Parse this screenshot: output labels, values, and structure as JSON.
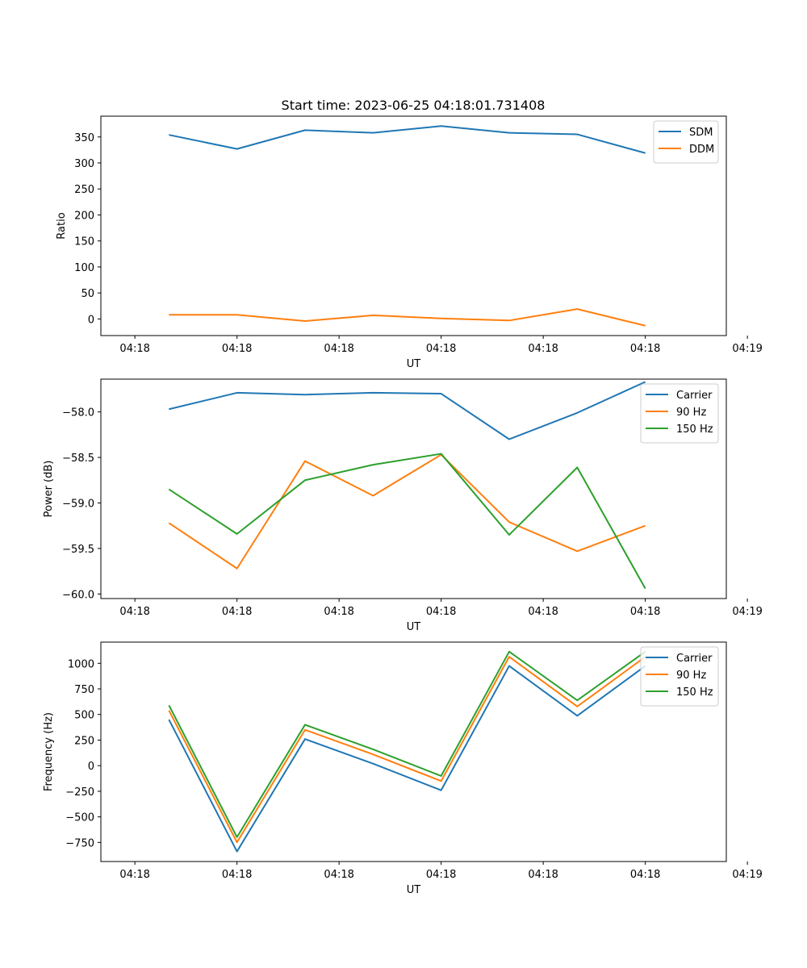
{
  "figure_title": "Start time: 2023-06-25 04:18:01.731408",
  "colors": {
    "series_1": "#1f77b4",
    "series_2": "#ff7f0e",
    "series_3": "#2ca02c",
    "axes": "#000000",
    "legend_border": "#cccccc"
  },
  "chart_data": [
    {
      "type": "line",
      "title": "Start time: 2023-06-25 04:18:01.731408",
      "xlabel": "UT",
      "ylabel": "Ratio",
      "x_ticks": [
        "04:18",
        "04:18",
        "04:18",
        "04:18",
        "04:18",
        "04:18",
        "04:19"
      ],
      "x": [
        1,
        2,
        3,
        4,
        5,
        6,
        7,
        8
      ],
      "xlim": [
        0,
        9.19
      ],
      "ylim": [
        -32,
        390
      ],
      "yticks": [
        0,
        50,
        100,
        150,
        200,
        250,
        300,
        350
      ],
      "legend_position": "top-right",
      "grid": false,
      "series": [
        {
          "name": "SDM",
          "color": "#1f77b4",
          "values": [
            354,
            327,
            363,
            358,
            371,
            358,
            355,
            319
          ]
        },
        {
          "name": "DDM",
          "color": "#ff7f0e",
          "values": [
            8,
            8,
            -4,
            7,
            1,
            -3,
            19,
            -13
          ]
        }
      ]
    },
    {
      "type": "line",
      "title": "",
      "xlabel": "UT",
      "ylabel": "Power (dB)",
      "x_ticks": [
        "04:18",
        "04:18",
        "04:18",
        "04:18",
        "04:18",
        "04:18",
        "04:19"
      ],
      "x": [
        1,
        2,
        3,
        4,
        5,
        6,
        7,
        8
      ],
      "xlim": [
        0,
        9.19
      ],
      "ylim": [
        -60.05,
        -57.64
      ],
      "yticks": [
        -60.0,
        -59.5,
        -59.0,
        -58.5,
        -58.0
      ],
      "ytick_labels": [
        "−60.0",
        "−59.5",
        "−59.0",
        "−58.5",
        "−58.0"
      ],
      "legend_position": "top-right",
      "grid": false,
      "series": [
        {
          "name": "Carrier",
          "color": "#1f77b4",
          "values": [
            -57.97,
            -57.79,
            -57.81,
            -57.79,
            -57.8,
            -58.3,
            -58.01,
            -57.67
          ]
        },
        {
          "name": "90 Hz",
          "color": "#ff7f0e",
          "values": [
            -59.22,
            -59.72,
            -58.54,
            -58.92,
            -58.47,
            -59.21,
            -59.53,
            -59.25
          ]
        },
        {
          "name": "150 Hz",
          "color": "#2ca02c",
          "values": [
            -58.85,
            -59.34,
            -58.75,
            -58.58,
            -58.46,
            -59.35,
            -58.61,
            -59.94
          ]
        }
      ]
    },
    {
      "type": "line",
      "title": "",
      "xlabel": "UT",
      "ylabel": "Frequency (Hz)",
      "x_ticks": [
        "04:18",
        "04:18",
        "04:18",
        "04:18",
        "04:18",
        "04:18",
        "04:19"
      ],
      "x": [
        1,
        2,
        3,
        4,
        5,
        6,
        7,
        8
      ],
      "xlim": [
        0,
        9.19
      ],
      "ylim": [
        -936,
        1207
      ],
      "yticks": [
        -750,
        -500,
        -250,
        0,
        250,
        500,
        750,
        1000
      ],
      "ytick_labels": [
        "−750",
        "−500",
        "−250",
        "0",
        "250",
        "500",
        "750",
        "1000"
      ],
      "legend_position": "top-right",
      "grid": false,
      "series": [
        {
          "name": "Carrier",
          "color": "#1f77b4",
          "values": [
            450,
            -838,
            260,
            20,
            -240,
            974,
            488,
            974
          ]
        },
        {
          "name": "90 Hz",
          "color": "#ff7f0e",
          "values": [
            540,
            -748,
            350,
            110,
            -150,
            1064,
            578,
            1064
          ]
        },
        {
          "name": "150 Hz",
          "color": "#2ca02c",
          "values": [
            590,
            -698,
            400,
            160,
            -100,
            1114,
            638,
            1114
          ]
        }
      ]
    }
  ]
}
